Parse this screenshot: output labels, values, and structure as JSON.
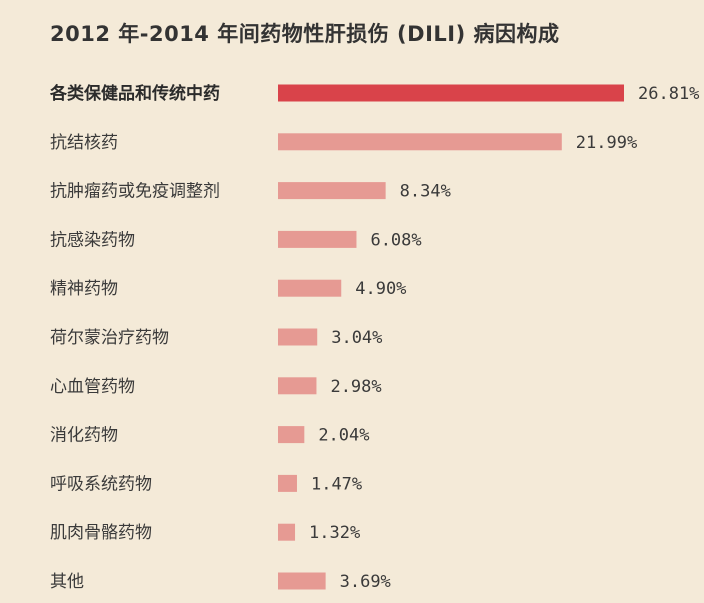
{
  "chart_data": {
    "type": "bar",
    "orientation": "horizontal",
    "title": "2012 年-2014 年间药物性肝损伤 (DILI) 病因构成",
    "categories": [
      "各类保健品和传统中药",
      "抗结核药",
      "抗肿瘤药或免疫调整剂",
      "抗感染药物",
      "精神药物",
      "荷尔蒙治疗药物",
      "心血管药物",
      "消化药物",
      "呼吸系统药物",
      "肌肉骨骼药物",
      "其他"
    ],
    "values": [
      26.81,
      21.99,
      8.34,
      6.08,
      4.9,
      3.04,
      2.98,
      2.04,
      1.47,
      1.32,
      3.69
    ],
    "value_labels": [
      "26.81%",
      "21.99%",
      "8.34%",
      "6.08%",
      "4.90%",
      "3.04%",
      "2.98%",
      "2.04%",
      "1.47%",
      "1.32%",
      "3.69%"
    ],
    "highlight_index": 0,
    "grid": false,
    "legend": "none",
    "colors": {
      "background": "#f4ead8",
      "highlight_bar": "#d9434a",
      "bar": "#e69a93"
    }
  }
}
